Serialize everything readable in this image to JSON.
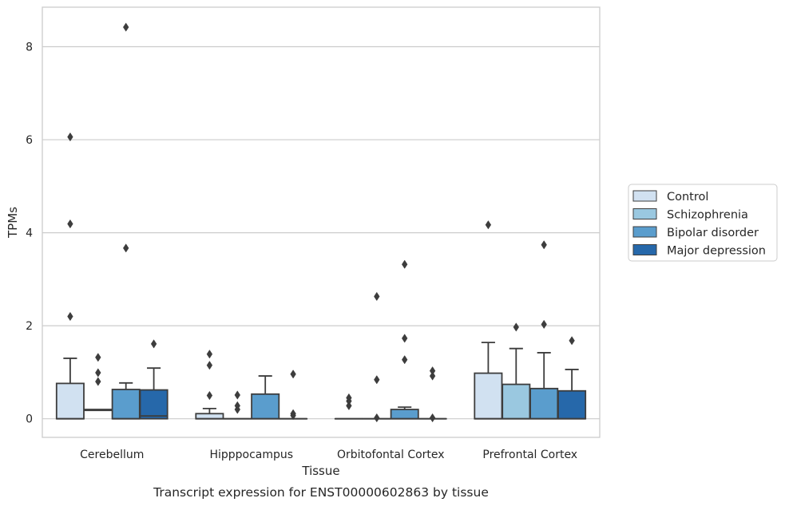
{
  "chart_data": {
    "type": "box",
    "title": "",
    "caption": "Transcript expression for ENST00000602863 by tissue",
    "xlabel": "Tissue",
    "ylabel": "TPMs",
    "ylim": [
      -0.4,
      8.85
    ],
    "yticks": [
      0,
      2,
      4,
      6,
      8
    ],
    "grid": "horizontal",
    "legend_position": "right",
    "categories": [
      "Cerebellum",
      "Hipppocampus",
      "Orbitofontal Cortex",
      "Prefrontal Cortex"
    ],
    "series": [
      {
        "name": "Control",
        "color": "#d1e1f1",
        "boxes": [
          {
            "q1": 0,
            "median": 0,
            "q3": 0.76,
            "whisker_low": 0,
            "whisker_high": 1.3,
            "outliers": [
              2.2,
              4.19,
              6.06
            ]
          },
          {
            "q1": 0,
            "median": 0,
            "q3": 0.11,
            "whisker_low": 0,
            "whisker_high": 0.22,
            "outliers": [
              0.5,
              1.15,
              1.39
            ]
          },
          {
            "q1": 0,
            "median": 0,
            "q3": 0,
            "whisker_low": 0,
            "whisker_high": 0,
            "outliers": [
              0.28,
              0.38,
              0.45
            ]
          },
          {
            "q1": 0,
            "median": 0,
            "q3": 0.98,
            "whisker_low": 0,
            "whisker_high": 1.64,
            "outliers": [
              4.17
            ]
          }
        ]
      },
      {
        "name": "Schizophrenia",
        "color": "#9ac8e0",
        "boxes": [
          {
            "q1": 0.18,
            "median": 0.19,
            "q3": 0.2,
            "whisker_low": 0.18,
            "whisker_high": 0.2,
            "outliers": [
              0.8,
              0.99,
              1.32
            ]
          },
          {
            "q1": 0,
            "median": 0,
            "q3": 0,
            "whisker_low": 0,
            "whisker_high": 0,
            "outliers": [
              0.2,
              0.28,
              0.51
            ]
          },
          {
            "q1": 0,
            "median": 0,
            "q3": 0,
            "whisker_low": 0,
            "whisker_high": 0,
            "outliers": [
              0.02,
              0.84,
              2.63
            ]
          },
          {
            "q1": 0,
            "median": 0,
            "q3": 0.74,
            "whisker_low": 0,
            "whisker_high": 1.51,
            "outliers": [
              1.97
            ]
          }
        ]
      },
      {
        "name": "Bipolar disorder",
        "color": "#5a9dcd",
        "boxes": [
          {
            "q1": 0,
            "median": 0,
            "q3": 0.63,
            "whisker_low": 0,
            "whisker_high": 0.77,
            "outliers": [
              3.67,
              8.42
            ]
          },
          {
            "q1": 0,
            "median": 0,
            "q3": 0.53,
            "whisker_low": 0,
            "whisker_high": 0.92,
            "outliers": []
          },
          {
            "q1": 0,
            "median": 0,
            "q3": 0.2,
            "whisker_low": 0,
            "whisker_high": 0.25,
            "outliers": [
              1.27,
              1.73,
              3.32
            ]
          },
          {
            "q1": 0,
            "median": 0,
            "q3": 0.65,
            "whisker_low": 0,
            "whisker_high": 1.42,
            "outliers": [
              2.03,
              3.74
            ]
          }
        ]
      },
      {
        "name": "Major depression",
        "color": "#2668aa",
        "boxes": [
          {
            "q1": 0,
            "median": 0.06,
            "q3": 0.62,
            "whisker_low": 0,
            "whisker_high": 1.09,
            "outliers": [
              1.61
            ]
          },
          {
            "q1": 0,
            "median": 0,
            "q3": 0,
            "whisker_low": 0,
            "whisker_high": 0,
            "outliers": [
              0.07,
              0.11,
              0.96
            ]
          },
          {
            "q1": 0,
            "median": 0,
            "q3": 0,
            "whisker_low": 0,
            "whisker_high": 0,
            "outliers": [
              0.02,
              0.92,
              1.03
            ]
          },
          {
            "q1": 0,
            "median": 0,
            "q3": 0.6,
            "whisker_low": 0,
            "whisker_high": 1.06,
            "outliers": [
              1.68
            ]
          }
        ]
      }
    ]
  }
}
